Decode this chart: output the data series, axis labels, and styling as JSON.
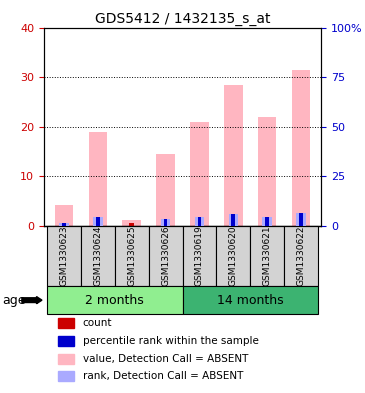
{
  "title": "GDS5412 / 1432135_s_at",
  "samples": [
    "GSM1330623",
    "GSM1330624",
    "GSM1330625",
    "GSM1330626",
    "GSM1330619",
    "GSM1330620",
    "GSM1330621",
    "GSM1330622"
  ],
  "groups": [
    {
      "label": "2 months",
      "indices": [
        0,
        1,
        2,
        3
      ],
      "color": "#90EE90"
    },
    {
      "label": "14 months",
      "indices": [
        4,
        5,
        6,
        7
      ],
      "color": "#3CB371"
    }
  ],
  "value_absent": [
    4.2,
    19.0,
    1.2,
    14.5,
    21.0,
    28.5,
    22.0,
    31.5
  ],
  "rank_absent": [
    1.2,
    4.2,
    0.0,
    3.5,
    4.5,
    6.0,
    4.5,
    6.5
  ],
  "count_red": [
    0.5,
    0.5,
    0.5,
    0.5,
    0.5,
    0.5,
    0.5,
    0.5
  ],
  "percentile_blue": [
    1.2,
    4.2,
    0.0,
    3.5,
    4.5,
    6.0,
    4.5,
    6.5
  ],
  "ylim_left": [
    0,
    40
  ],
  "ylim_right": [
    0,
    100
  ],
  "yticks_left": [
    0,
    10,
    20,
    30,
    40
  ],
  "yticks_right": [
    0,
    25,
    50,
    75,
    100
  ],
  "yticklabels_right": [
    "0",
    "25",
    "50",
    "75",
    "100%"
  ],
  "left_color": "#CC0000",
  "right_color": "#0000CC",
  "bar_width": 0.55,
  "absent_value_color": "#FFB6C1",
  "absent_rank_color": "#AAAAFF",
  "count_color": "#CC0000",
  "percentile_color": "#0000CC",
  "legend_items": [
    {
      "color": "#CC0000",
      "label": "count"
    },
    {
      "color": "#0000CC",
      "label": "percentile rank within the sample"
    },
    {
      "color": "#FFB6C1",
      "label": "value, Detection Call = ABSENT"
    },
    {
      "color": "#AAAAFF",
      "label": "rank, Detection Call = ABSENT"
    }
  ],
  "age_label": "age",
  "sample_area_color": "#D3D3D3",
  "sample_fontsize": 6.5,
  "title_fontsize": 10,
  "tick_fontsize": 8,
  "legend_fontsize": 7.5
}
